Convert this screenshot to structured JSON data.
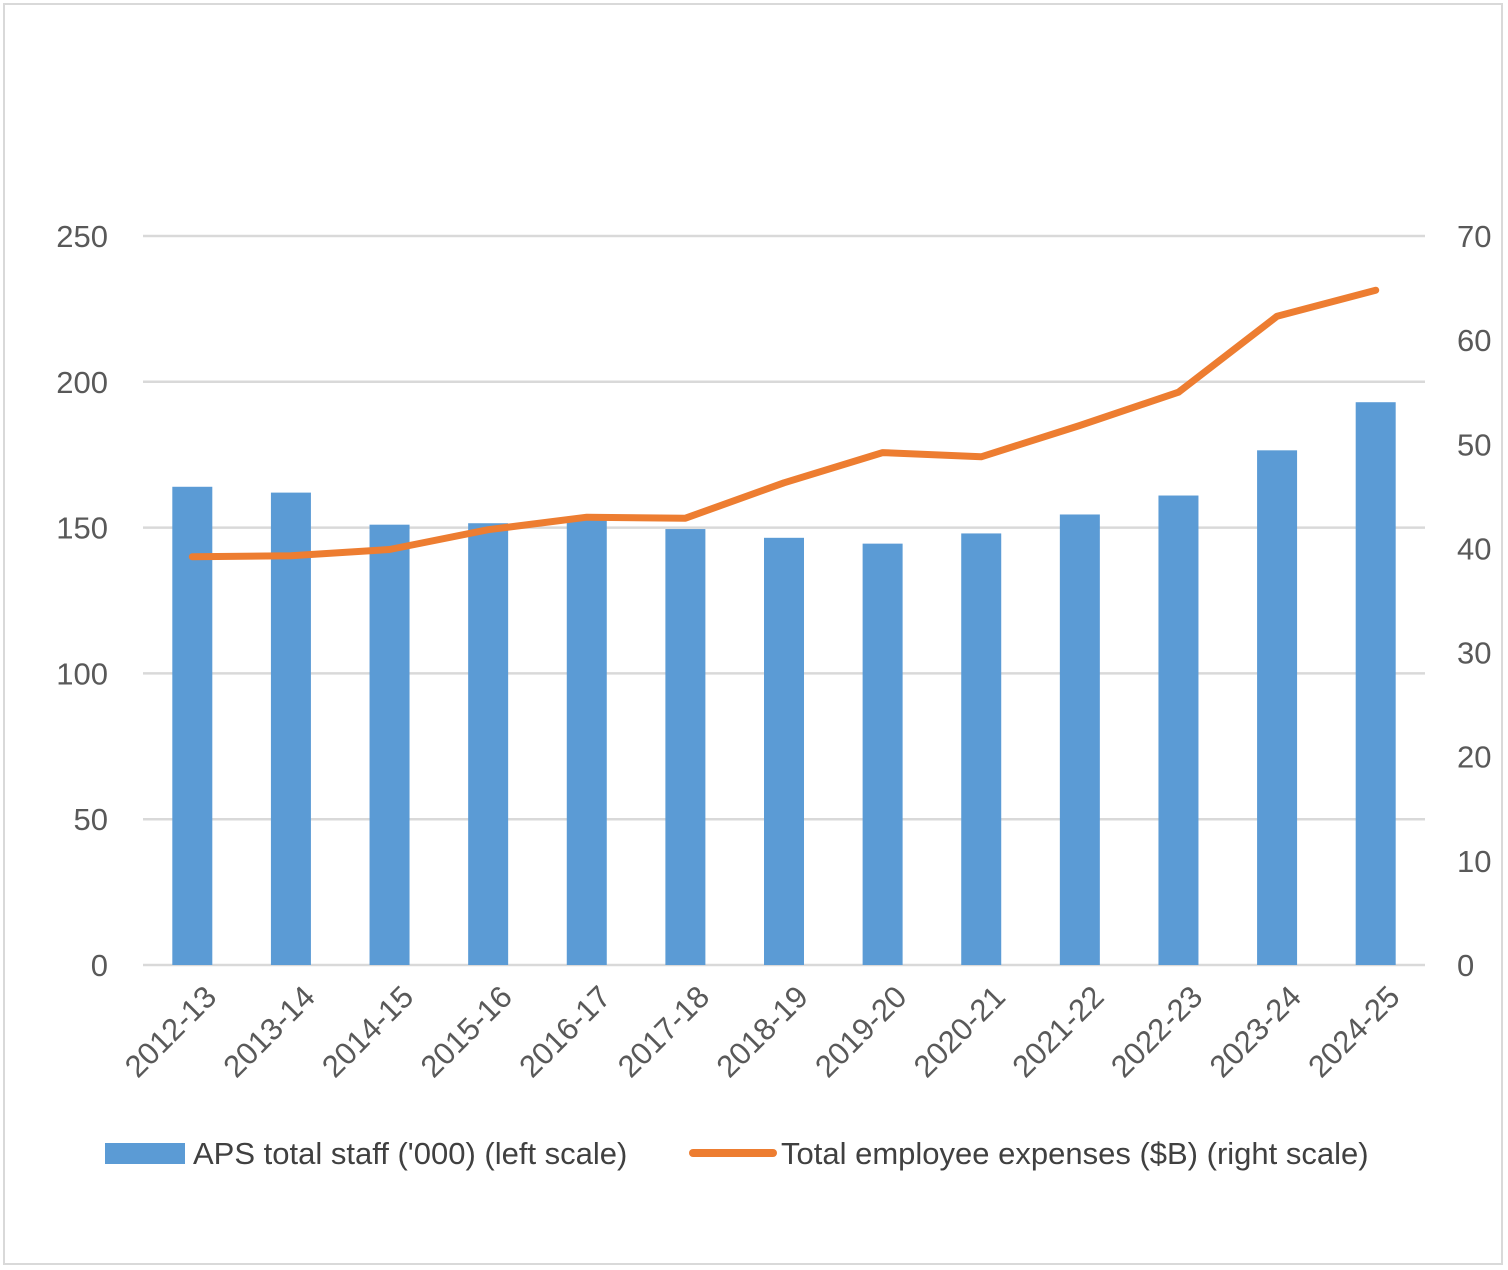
{
  "chart_data": {
    "type": "bar",
    "categories": [
      "2012-13",
      "2013-14",
      "2014-15",
      "2015-16",
      "2016-17",
      "2017-18",
      "2018-19",
      "2019-20",
      "2020-21",
      "2021-22",
      "2022-23",
      "2023-24",
      "2024-25"
    ],
    "series": [
      {
        "name": "APS total staff ('000) (left scale)",
        "type": "bar",
        "axis": "left",
        "color": "#5b9bd5",
        "values": [
          164,
          162,
          151,
          151.5,
          153,
          149.5,
          146.5,
          144.5,
          148,
          154.5,
          161,
          176.5,
          193
        ]
      },
      {
        "name": "Total employee expenses ($B) (right scale)",
        "type": "line",
        "axis": "right",
        "color": "#ed7d31",
        "values": [
          39.2,
          39.3,
          39.9,
          41.8,
          43.0,
          42.9,
          46.3,
          49.2,
          48.8,
          51.8,
          55.0,
          62.3,
          64.8
        ]
      }
    ],
    "y_left": {
      "min": 0,
      "max": 250,
      "ticks": [
        0,
        50,
        100,
        150,
        200,
        250
      ]
    },
    "y_right": {
      "min": 0,
      "max": 70,
      "ticks": [
        0,
        10,
        20,
        30,
        40,
        50,
        60,
        70
      ]
    },
    "grid": true,
    "legend": "bottom",
    "title": "",
    "xlabel": "",
    "ylabel": ""
  }
}
